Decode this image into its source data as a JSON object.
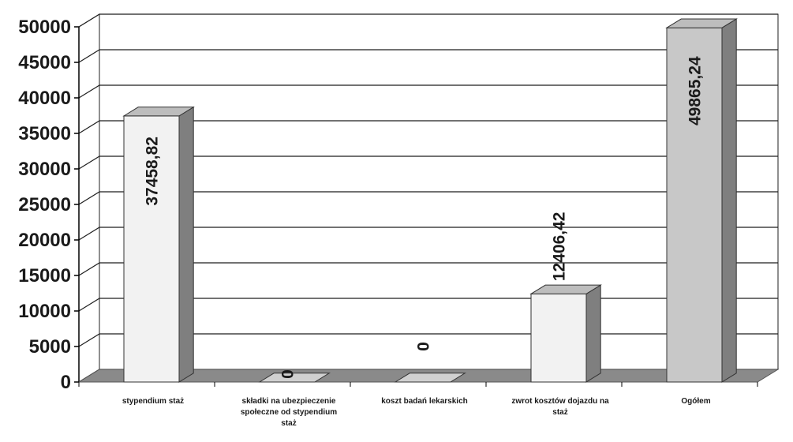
{
  "chart_data": {
    "type": "bar",
    "style": "3d-column",
    "title": "",
    "xlabel": "",
    "ylabel": "",
    "ylim": [
      0,
      50000
    ],
    "yticks": [
      "0",
      "5000",
      "10000",
      "15000",
      "20000",
      "25000",
      "30000",
      "35000",
      "40000",
      "45000",
      "50000"
    ],
    "grid": true,
    "categories": [
      "stypendium staż",
      "składki na ubezpieczenie społeczne od stypendium staż",
      "koszt badań lekarskich",
      "zwrot kosztów dojazdu na staż",
      "Ogółem"
    ],
    "values": [
      37458.82,
      0,
      0,
      12406.42,
      49865.24
    ],
    "data_labels": [
      "37458,82",
      "0",
      "0",
      "12406,42",
      "49865,24"
    ],
    "colors": {
      "bar_front": "#f2f2f2",
      "bar_side": "#7f7f7f",
      "bar_top": "#bdbdbd",
      "total_front": "#c8c8c8",
      "floor": "#8a8a8a",
      "grid": "#1f1f1f"
    }
  }
}
